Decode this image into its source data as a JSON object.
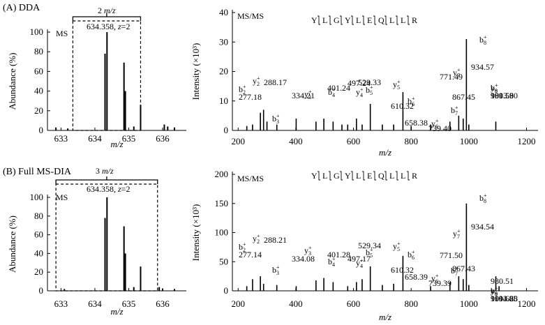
{
  "chart_data": [
    {
      "panel": "A-MS",
      "type": "bar",
      "panel_label": "(A) DDA",
      "inner_label": "MS",
      "annotation": "634.358, z=2",
      "window_label": "2 m/z",
      "window": [
        633.35,
        635.35
      ],
      "xlabel": "m/z",
      "ylabel": "Abundance (%)",
      "xlim": [
        632.6,
        636.7
      ],
      "ylim": [
        0,
        100
      ],
      "xticks": [
        633,
        634,
        635,
        636
      ],
      "yticks": [
        0,
        20,
        40,
        60,
        80,
        100
      ],
      "peaks": [
        {
          "x": 632.85,
          "y": 3
        },
        {
          "x": 633.2,
          "y": 2
        },
        {
          "x": 634.3,
          "y": 78
        },
        {
          "x": 634.358,
          "y": 100
        },
        {
          "x": 634.86,
          "y": 69
        },
        {
          "x": 634.9,
          "y": 40
        },
        {
          "x": 635.35,
          "y": 26
        },
        {
          "x": 635.15,
          "y": 4
        },
        {
          "x": 636.05,
          "y": 6
        },
        {
          "x": 636.15,
          "y": 4
        },
        {
          "x": 636.35,
          "y": 3
        }
      ]
    },
    {
      "panel": "A-MSMS",
      "type": "bar",
      "inner_label": "MS/MS",
      "sequence": [
        "Y",
        "L",
        "G",
        "Y",
        "L",
        "E",
        "Q",
        "L",
        "L",
        "R"
      ],
      "xlabel": "m/z",
      "ylabel": "Intensity (×10³)",
      "xlim": [
        180,
        1240
      ],
      "ylim": [
        0,
        40
      ],
      "xticks": [
        200,
        400,
        600,
        800,
        1000,
        1200
      ],
      "yticks": [
        0,
        10,
        20,
        30,
        40
      ],
      "peaks": [
        {
          "x": 230,
          "y": 1.5
        },
        {
          "x": 250,
          "y": 2
        },
        {
          "x": 277.18,
          "y": 6
        },
        {
          "x": 288.17,
          "y": 7
        },
        {
          "x": 300,
          "y": 3
        },
        {
          "x": 334.21,
          "y": 2
        },
        {
          "x": 401.24,
          "y": 4
        },
        {
          "x": 470,
          "y": 3
        },
        {
          "x": 497.24,
          "y": 4
        },
        {
          "x": 529.33,
          "y": 3
        },
        {
          "x": 560,
          "y": 2
        },
        {
          "x": 580,
          "y": 2
        },
        {
          "x": 610.32,
          "y": 4
        },
        {
          "x": 630,
          "y": 2
        },
        {
          "x": 658.38,
          "y": 9
        },
        {
          "x": 700,
          "y": 2
        },
        {
          "x": 739.4,
          "y": 2
        },
        {
          "x": 771.49,
          "y": 13
        },
        {
          "x": 800,
          "y": 1.5
        },
        {
          "x": 867.45,
          "y": 2
        },
        {
          "x": 934.57,
          "y": 3
        },
        {
          "x": 965,
          "y": 5
        },
        {
          "x": 980.53,
          "y": 4
        },
        {
          "x": 991.59,
          "y": 31
        },
        {
          "x": 1000,
          "y": 2
        },
        {
          "x": 1093.6,
          "y": 3
        }
      ],
      "labels": [
        {
          "ion": "b",
          "sub": "2",
          "mz": "277.18"
        },
        {
          "ion": "y",
          "sub": "2",
          "mz": "288.17"
        },
        {
          "ion": "b",
          "sub": "3",
          "mz": "334.21"
        },
        {
          "ion": "y",
          "sub": "3",
          "mz": "401.24"
        },
        {
          "ion": "b",
          "sub": "4",
          "mz": "497.24"
        },
        {
          "ion": "y",
          "sub": "4",
          "mz": "529.33"
        },
        {
          "ion": "b",
          "sub": "5",
          "mz": "610.32"
        },
        {
          "ion": "y",
          "sub": "5",
          "mz": "658.38"
        },
        {
          "ion": "b",
          "sub": "6",
          "mz": "739.40"
        },
        {
          "ion": "y",
          "sub": "6",
          "mz": "771.49"
        },
        {
          "ion": "b",
          "sub": "7",
          "mz": "867.45"
        },
        {
          "ion": "y",
          "sub": "7",
          "mz": "934.57"
        },
        {
          "ion": "b",
          "sub": "8",
          "mz": "980.53"
        },
        {
          "ion": "y",
          "sub": "8",
          "mz": "991.59"
        },
        {
          "ion": "b",
          "sub": "9",
          "mz": "1093.60"
        }
      ]
    },
    {
      "panel": "B-MS",
      "type": "bar",
      "panel_label": "(B) Full MS-DIA",
      "inner_label": "MS",
      "annotation": "634.358, z=2",
      "window_label": "3 m/z",
      "window": [
        632.85,
        635.85
      ],
      "xlabel": "m/z",
      "ylabel": "Abundance (%)",
      "xlim": [
        632.6,
        636.7
      ],
      "ylim": [
        0,
        100
      ],
      "xticks": [
        633,
        634,
        635,
        636
      ],
      "yticks": [
        0,
        20,
        40,
        60,
        80,
        100
      ],
      "peaks": [
        {
          "x": 633.1,
          "y": 2
        },
        {
          "x": 634.3,
          "y": 78
        },
        {
          "x": 634.358,
          "y": 100
        },
        {
          "x": 634.86,
          "y": 69
        },
        {
          "x": 634.9,
          "y": 40
        },
        {
          "x": 635.35,
          "y": 26
        },
        {
          "x": 635.15,
          "y": 4
        },
        {
          "x": 635.9,
          "y": 4
        },
        {
          "x": 636.0,
          "y": 2
        },
        {
          "x": 636.35,
          "y": 2
        }
      ]
    },
    {
      "panel": "B-MSMS",
      "type": "bar",
      "inner_label": "MS/MS",
      "sequence": [
        "Y",
        "L",
        "G",
        "Y",
        "L",
        "E",
        "Q",
        "L",
        "L",
        "R"
      ],
      "xlabel": "m/z",
      "ylabel": "Intensity (×10³)",
      "xlim": [
        180,
        1240
      ],
      "ylim": [
        0,
        200
      ],
      "xticks": [
        200,
        400,
        600,
        800,
        1000,
        1200
      ],
      "yticks": [
        0,
        50,
        100,
        150,
        200
      ],
      "peaks": [
        {
          "x": 230,
          "y": 8
        },
        {
          "x": 250,
          "y": 20
        },
        {
          "x": 277.14,
          "y": 25
        },
        {
          "x": 288.21,
          "y": 12
        },
        {
          "x": 334.08,
          "y": 10
        },
        {
          "x": 401.28,
          "y": 8
        },
        {
          "x": 470,
          "y": 18
        },
        {
          "x": 497.17,
          "y": 22
        },
        {
          "x": 529.34,
          "y": 15
        },
        {
          "x": 580,
          "y": 8
        },
        {
          "x": 610.32,
          "y": 15
        },
        {
          "x": 630,
          "y": 20
        },
        {
          "x": 658.39,
          "y": 42
        },
        {
          "x": 700,
          "y": 10
        },
        {
          "x": 739.39,
          "y": 12
        },
        {
          "x": 771.5,
          "y": 60
        },
        {
          "x": 867.43,
          "y": 8
        },
        {
          "x": 934.54,
          "y": 15
        },
        {
          "x": 965,
          "y": 25
        },
        {
          "x": 980.51,
          "y": 20
        },
        {
          "x": 991.62,
          "y": 150
        },
        {
          "x": 1000,
          "y": 10
        },
        {
          "x": 1093.68,
          "y": 25
        },
        {
          "x": 1104.85,
          "y": 8
        }
      ],
      "labels": [
        {
          "ion": "b",
          "sub": "2",
          "mz": "277.14"
        },
        {
          "ion": "y",
          "sub": "2",
          "mz": "288.21"
        },
        {
          "ion": "b",
          "sub": "3",
          "mz": "334.08"
        },
        {
          "ion": "y",
          "sub": "3",
          "mz": "401.28"
        },
        {
          "ion": "b",
          "sub": "4",
          "mz": "497.17"
        },
        {
          "ion": "y",
          "sub": "4",
          "mz": "529.34"
        },
        {
          "ion": "b",
          "sub": "5",
          "mz": "610.32"
        },
        {
          "ion": "y",
          "sub": "5",
          "mz": "658.39"
        },
        {
          "ion": "b",
          "sub": "6",
          "mz": "739.39"
        },
        {
          "ion": "y",
          "sub": "6",
          "mz": "771.50"
        },
        {
          "ion": "b",
          "sub": "7",
          "mz": "867.43"
        },
        {
          "ion": "y",
          "sub": "7",
          "mz": "934.54"
        },
        {
          "ion": "b",
          "sub": "8",
          "mz": "980.51"
        },
        {
          "ion": "y",
          "sub": "8",
          "mz": "991.62"
        },
        {
          "ion": "b",
          "sub": "9",
          "mz": "1093.68"
        },
        {
          "ion": "y",
          "sub": "9",
          "mz": "1104.85"
        }
      ]
    }
  ]
}
